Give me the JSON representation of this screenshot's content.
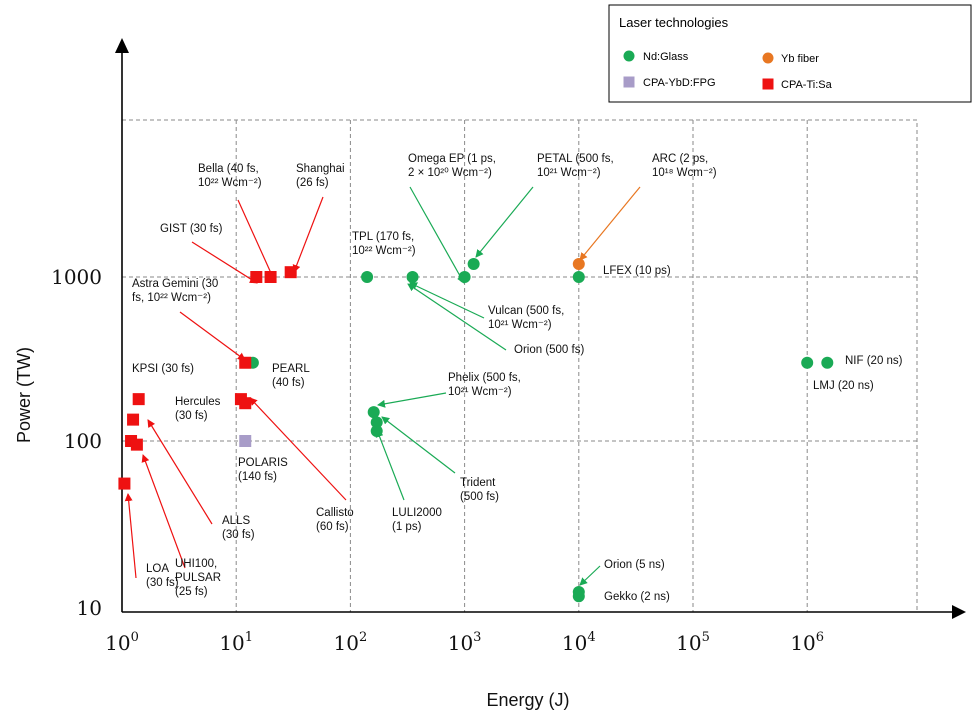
{
  "chart_data": {
    "type": "scatter",
    "xlabel": "Energy (J)",
    "ylabel": "Power (TW)",
    "x_scale": "log",
    "y_scale": "log",
    "xlim": [
      1,
      10000000
    ],
    "ylim": [
      10,
      10000
    ],
    "x_ticks": [
      {
        "value": 1,
        "base": "10",
        "exp": "0"
      },
      {
        "value": 10,
        "base": "10",
        "exp": "1"
      },
      {
        "value": 100,
        "base": "10",
        "exp": "2"
      },
      {
        "value": 1000,
        "base": "10",
        "exp": "3"
      },
      {
        "value": 10000,
        "base": "10",
        "exp": "4"
      },
      {
        "value": 100000,
        "base": "10",
        "exp": "5"
      },
      {
        "value": 1000000,
        "base": "10",
        "exp": "6"
      }
    ],
    "y_ticks": [
      {
        "value": 10,
        "label": "10"
      },
      {
        "value": 100,
        "label": "100"
      },
      {
        "value": 1000,
        "label": "1000"
      }
    ],
    "grid": true,
    "legend": {
      "title": "Laser technologies",
      "position": "top-right",
      "entries": [
        {
          "name": "Nd:Glass",
          "marker": "circle",
          "color": "#1aaa55"
        },
        {
          "name": "Yb fiber",
          "marker": "circle",
          "color": "#e87722"
        },
        {
          "name": "CPA-YbD:FPG",
          "marker": "square",
          "color": "#a89cc8"
        },
        {
          "name": "CPA-Ti:Sa",
          "marker": "square",
          "color": "#ee1111"
        }
      ]
    },
    "series": [
      {
        "name": "Nd:Glass",
        "points": [
          {
            "x": 14,
            "y": 300
          },
          {
            "x": 140,
            "y": 1000
          },
          {
            "x": 350,
            "y": 1000
          },
          {
            "x": 1000,
            "y": 1000
          },
          {
            "x": 1200,
            "y": 1200
          },
          {
            "x": 10000,
            "y": 1000
          },
          {
            "x": 160,
            "y": 150
          },
          {
            "x": 170,
            "y": 130
          },
          {
            "x": 170,
            "y": 115
          },
          {
            "x": 10000,
            "y": 12
          },
          {
            "x": 10000,
            "y": 11.3
          },
          {
            "x": 1000000,
            "y": 300
          },
          {
            "x": 1500000,
            "y": 300
          }
        ]
      },
      {
        "name": "Yb fiber",
        "points": [
          {
            "x": 10000,
            "y": 1200
          }
        ]
      },
      {
        "name": "CPA-YbD:FPG",
        "points": [
          {
            "x": 12,
            "y": 100
          }
        ]
      },
      {
        "name": "CPA-Ti:Sa",
        "points": [
          {
            "x": 1.05,
            "y": 55
          },
          {
            "x": 1.2,
            "y": 100
          },
          {
            "x": 1.35,
            "y": 95
          },
          {
            "x": 1.25,
            "y": 135
          },
          {
            "x": 1.4,
            "y": 180
          },
          {
            "x": 11,
            "y": 180
          },
          {
            "x": 12,
            "y": 170
          },
          {
            "x": 12,
            "y": 300
          },
          {
            "x": 15,
            "y": 1000
          },
          {
            "x": 20,
            "y": 1000
          },
          {
            "x": 30,
            "y": 1070
          }
        ]
      }
    ],
    "annotations": [
      {
        "lines": [
          "LOA",
          "(30 fs)"
        ]
      },
      {
        "lines": [
          "UHI100,",
          "PULSAR",
          "(25 fs)"
        ]
      },
      {
        "lines": [
          "ALLS",
          "(30 fs)"
        ]
      },
      {
        "lines": [
          "KPSI (30 fs)"
        ]
      },
      {
        "lines": [
          "Hercules",
          "(30 fs)"
        ]
      },
      {
        "lines": [
          "POLARIS",
          "(140 fs)"
        ]
      },
      {
        "lines": [
          "PEARL",
          "(40 fs)"
        ]
      },
      {
        "lines": [
          "Callisto",
          "(60 fs)"
        ]
      },
      {
        "lines": [
          "Astra Gemini (30",
          "fs, 10²² Wcm⁻²)"
        ]
      },
      {
        "lines": [
          "GIST (30 fs)"
        ]
      },
      {
        "lines": [
          "Bella (40 fs,",
          "10²² Wcm⁻²)"
        ]
      },
      {
        "lines": [
          "Shanghai",
          "(26 fs)"
        ]
      },
      {
        "lines": [
          "TPL (170 fs,",
          "10²² Wcm⁻²)"
        ]
      },
      {
        "lines": [
          "Omega EP (1 ps,",
          "2 × 10²⁰ Wcm⁻²)"
        ]
      },
      {
        "lines": [
          "PETAL (500 fs,",
          "10²¹ Wcm⁻²)"
        ]
      },
      {
        "lines": [
          "ARC (2 ps,",
          "10¹⁸ Wcm⁻²)"
        ]
      },
      {
        "lines": [
          "LFEX (10 ps)"
        ]
      },
      {
        "lines": [
          "Vulcan (500 fs,",
          "10²¹ Wcm⁻²)"
        ]
      },
      {
        "lines": [
          "Orion (500 fs)"
        ]
      },
      {
        "lines": [
          "Phelix (500 fs,",
          "10²¹ Wcm⁻²)"
        ]
      },
      {
        "lines": [
          "Trident",
          "(500 fs)"
        ]
      },
      {
        "lines": [
          "LULI2000",
          "(1 ps)"
        ]
      },
      {
        "lines": [
          "Orion (5 ns)"
        ]
      },
      {
        "lines": [
          "Gekko (2 ns)"
        ]
      },
      {
        "lines": [
          "NIF (20 ns)"
        ]
      },
      {
        "lines": [
          "LMJ (20 ns)"
        ]
      }
    ]
  }
}
